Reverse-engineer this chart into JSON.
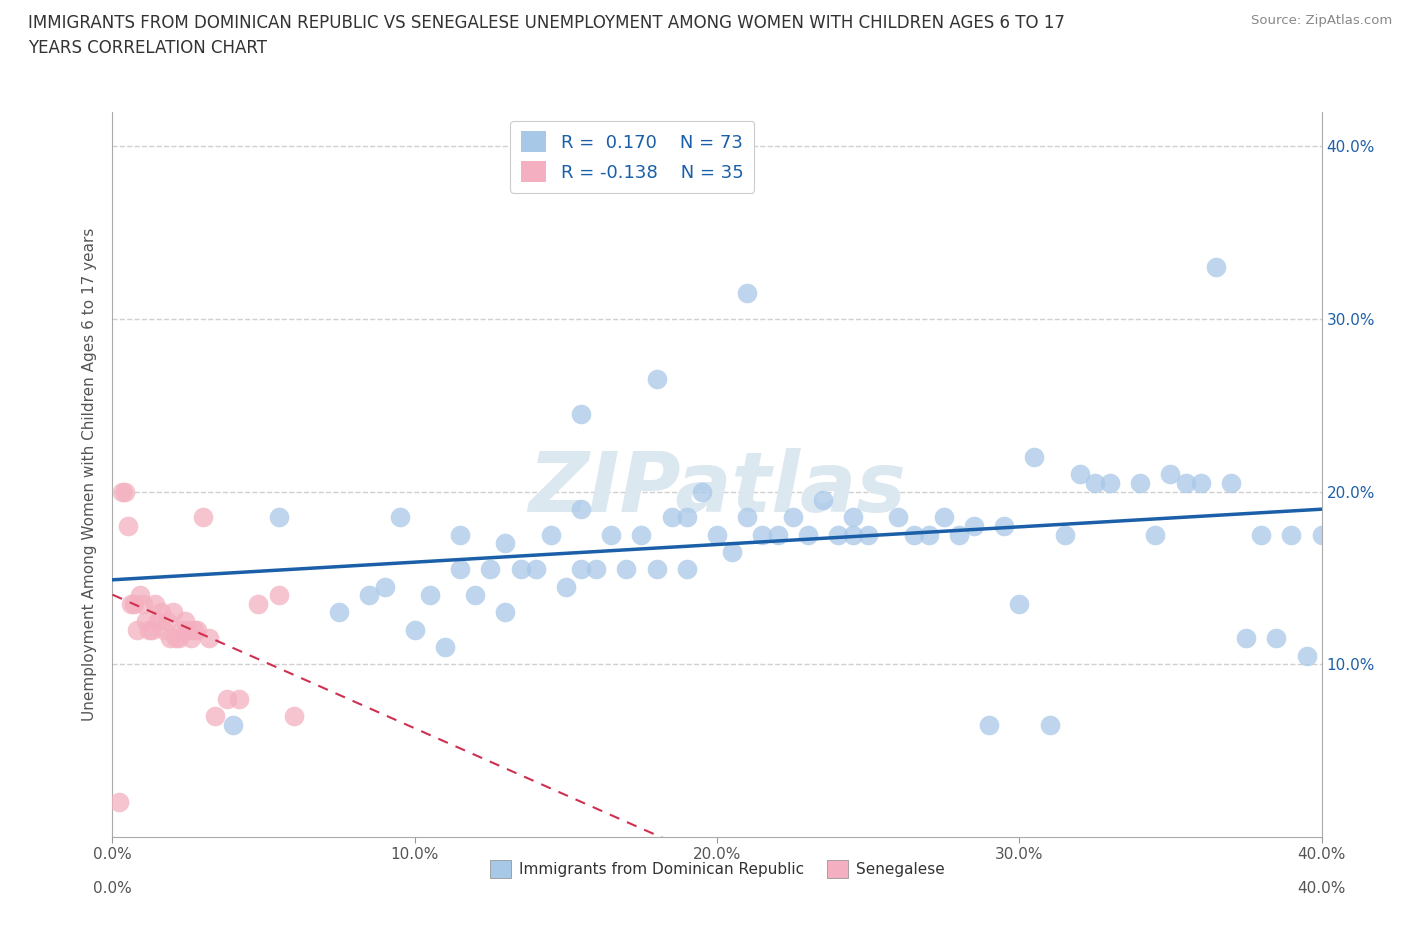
{
  "title_line1": "IMMIGRANTS FROM DOMINICAN REPUBLIC VS SENEGALESE UNEMPLOYMENT AMONG WOMEN WITH CHILDREN AGES 6 TO 17",
  "title_line2": "YEARS CORRELATION CHART",
  "source": "Source: ZipAtlas.com",
  "ylabel": "Unemployment Among Women with Children Ages 6 to 17 years",
  "xlabel_blue": "Immigrants from Dominican Republic",
  "xlabel_pink": "Senegalese",
  "r_blue": 0.17,
  "n_blue": 73,
  "r_pink": -0.138,
  "n_pink": 35,
  "xlim": [
    0.0,
    0.4
  ],
  "ylim": [
    0.0,
    0.42
  ],
  "xticks": [
    0.0,
    0.1,
    0.2,
    0.3,
    0.4
  ],
  "yticks": [
    0.1,
    0.2,
    0.3,
    0.4
  ],
  "blue_scatter_x": [
    0.04,
    0.055,
    0.075,
    0.085,
    0.09,
    0.095,
    0.1,
    0.105,
    0.11,
    0.115,
    0.115,
    0.12,
    0.125,
    0.13,
    0.13,
    0.135,
    0.14,
    0.145,
    0.15,
    0.155,
    0.155,
    0.16,
    0.165,
    0.17,
    0.175,
    0.18,
    0.185,
    0.19,
    0.19,
    0.195,
    0.2,
    0.205,
    0.21,
    0.215,
    0.22,
    0.225,
    0.23,
    0.235,
    0.24,
    0.245,
    0.25,
    0.26,
    0.265,
    0.27,
    0.275,
    0.28,
    0.285,
    0.29,
    0.295,
    0.3,
    0.305,
    0.31,
    0.315,
    0.32,
    0.325,
    0.33,
    0.34,
    0.345,
    0.35,
    0.355,
    0.36,
    0.365,
    0.37,
    0.375,
    0.38,
    0.385,
    0.39,
    0.395,
    0.4,
    0.155,
    0.18,
    0.21,
    0.245
  ],
  "blue_scatter_y": [
    0.065,
    0.185,
    0.13,
    0.14,
    0.145,
    0.185,
    0.12,
    0.14,
    0.11,
    0.155,
    0.175,
    0.14,
    0.155,
    0.13,
    0.17,
    0.155,
    0.155,
    0.175,
    0.145,
    0.155,
    0.19,
    0.155,
    0.175,
    0.155,
    0.175,
    0.155,
    0.185,
    0.155,
    0.185,
    0.2,
    0.175,
    0.165,
    0.185,
    0.175,
    0.175,
    0.185,
    0.175,
    0.195,
    0.175,
    0.185,
    0.175,
    0.185,
    0.175,
    0.175,
    0.185,
    0.175,
    0.18,
    0.065,
    0.18,
    0.135,
    0.22,
    0.065,
    0.175,
    0.21,
    0.205,
    0.205,
    0.205,
    0.175,
    0.21,
    0.205,
    0.205,
    0.33,
    0.205,
    0.115,
    0.175,
    0.115,
    0.175,
    0.105,
    0.175,
    0.245,
    0.265,
    0.315,
    0.175
  ],
  "pink_scatter_x": [
    0.002,
    0.003,
    0.004,
    0.005,
    0.006,
    0.007,
    0.008,
    0.009,
    0.01,
    0.011,
    0.012,
    0.013,
    0.014,
    0.015,
    0.016,
    0.017,
    0.018,
    0.019,
    0.02,
    0.021,
    0.022,
    0.023,
    0.024,
    0.025,
    0.026,
    0.027,
    0.028,
    0.03,
    0.032,
    0.034,
    0.038,
    0.042,
    0.048,
    0.055,
    0.06
  ],
  "pink_scatter_y": [
    0.02,
    0.2,
    0.2,
    0.18,
    0.135,
    0.135,
    0.12,
    0.14,
    0.135,
    0.125,
    0.12,
    0.12,
    0.135,
    0.125,
    0.13,
    0.12,
    0.125,
    0.115,
    0.13,
    0.115,
    0.115,
    0.12,
    0.125,
    0.12,
    0.115,
    0.12,
    0.12,
    0.185,
    0.115,
    0.07,
    0.08,
    0.08,
    0.135,
    0.14,
    0.07
  ],
  "blue_color": "#a8c8e8",
  "pink_color": "#f4b0c0",
  "blue_line_color": "#1a5fa8",
  "pink_line_color": "#d03050",
  "watermark": "ZIPatlas",
  "watermark_color": "#dce8f0",
  "background_color": "#ffffff",
  "grid_color": "#d0d0d0",
  "title_fontsize": 12,
  "tick_fontsize": 11,
  "legend_fontsize": 13
}
